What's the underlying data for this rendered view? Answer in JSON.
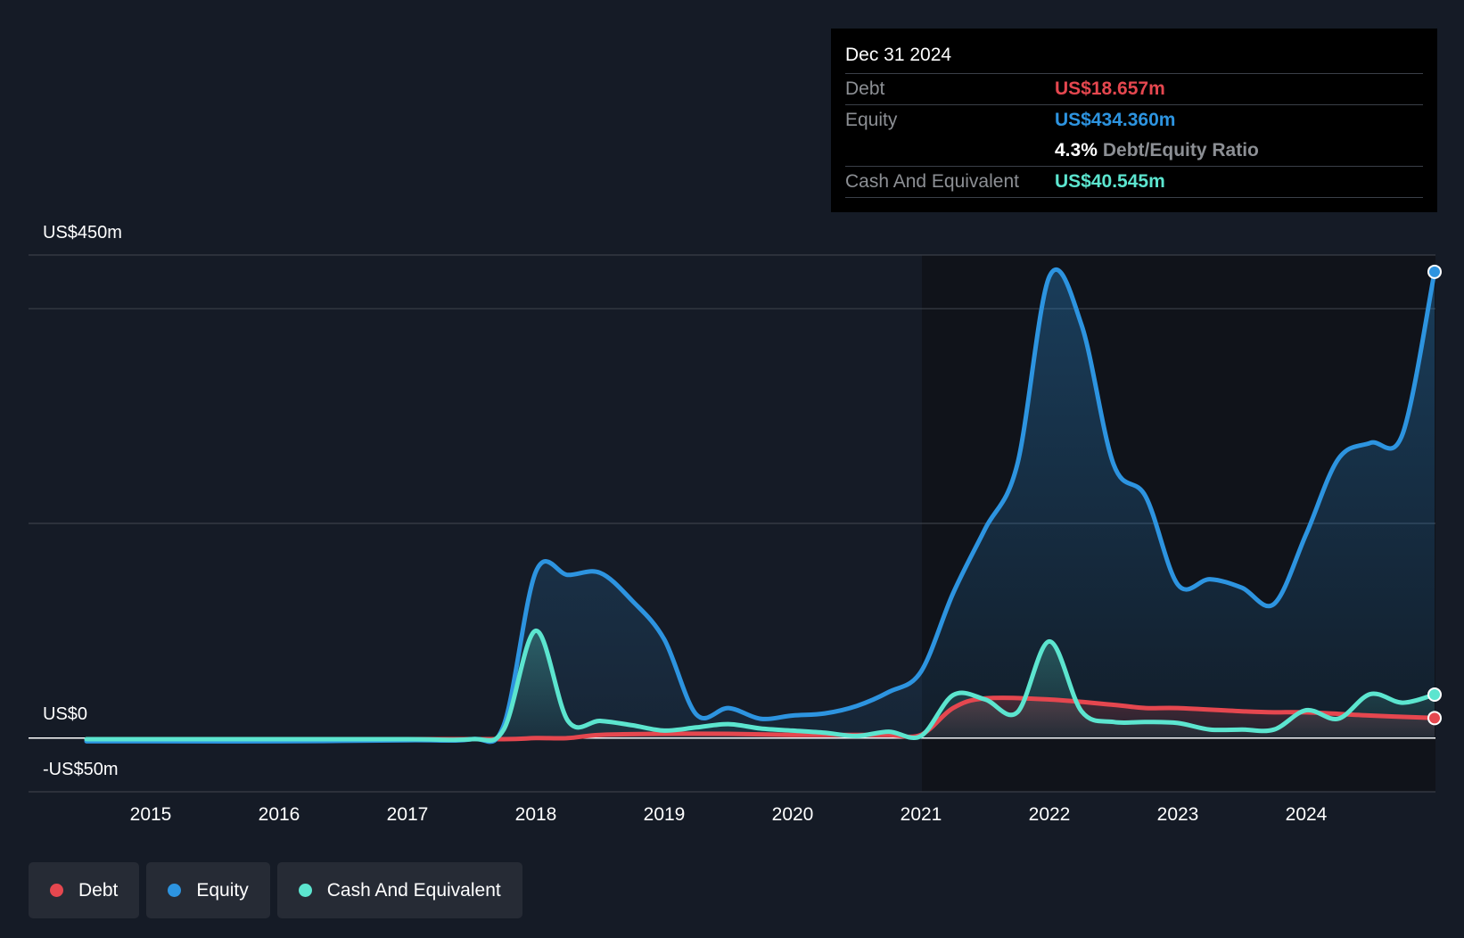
{
  "tooltip": {
    "date": "Dec 31 2024",
    "debt_label": "Debt",
    "debt_value": "US$18.657m",
    "equity_label": "Equity",
    "equity_value": "US$434.360m",
    "ratio_value": "4.3%",
    "ratio_label": "Debt/Equity Ratio",
    "cash_label": "Cash And Equivalent",
    "cash_value": "US$40.545m"
  },
  "y_axis": {
    "top_label": "US$450m",
    "zero_label": "US$0",
    "bottom_label": "-US$50m"
  },
  "legend": [
    {
      "label": "Debt",
      "color": "#e5474f"
    },
    {
      "label": "Equity",
      "color": "#2d94e0"
    },
    {
      "label": "Cash And Equivalent",
      "color": "#5ce5cf"
    }
  ],
  "colors": {
    "background": "#151b26",
    "highlight_background": "#10131a",
    "debt": "#e5474f",
    "equity": "#2d94e0",
    "cash": "#5ce5cf",
    "grid": "#3a3f48"
  },
  "chart_data": {
    "type": "area",
    "x_ticks": [
      "2015",
      "2016",
      "2017",
      "2018",
      "2019",
      "2020",
      "2021",
      "2022",
      "2023",
      "2024"
    ],
    "ylim": [
      -50,
      450
    ],
    "y_gridlines": [
      450,
      400,
      200,
      0,
      -50
    ],
    "legend_position": "bottom-left",
    "series": [
      {
        "name": "Debt",
        "color": "#e5474f",
        "points": [
          [
            2014.5,
            -2
          ],
          [
            2015.0,
            -1
          ],
          [
            2016.0,
            -1
          ],
          [
            2017.0,
            -1
          ],
          [
            2017.75,
            -1
          ],
          [
            2018.0,
            0
          ],
          [
            2018.25,
            0
          ],
          [
            2018.5,
            3
          ],
          [
            2019.0,
            4
          ],
          [
            2019.5,
            4
          ],
          [
            2020.0,
            3
          ],
          [
            2020.5,
            3
          ],
          [
            2020.75,
            3
          ],
          [
            2021.0,
            3
          ],
          [
            2021.25,
            28
          ],
          [
            2021.5,
            37
          ],
          [
            2022.0,
            36
          ],
          [
            2022.5,
            31
          ],
          [
            2022.75,
            28
          ],
          [
            2023.0,
            28
          ],
          [
            2023.5,
            25
          ],
          [
            2023.75,
            24
          ],
          [
            2024.0,
            24
          ],
          [
            2024.5,
            21
          ],
          [
            2025.0,
            18.657
          ]
        ]
      },
      {
        "name": "Equity",
        "color": "#2d94e0",
        "points": [
          [
            2014.5,
            -3
          ],
          [
            2015.0,
            -3
          ],
          [
            2016.0,
            -3
          ],
          [
            2017.0,
            -2
          ],
          [
            2017.5,
            -1
          ],
          [
            2017.75,
            12
          ],
          [
            2018.0,
            155
          ],
          [
            2018.25,
            152
          ],
          [
            2018.5,
            154
          ],
          [
            2018.75,
            128
          ],
          [
            2019.0,
            92
          ],
          [
            2019.25,
            22
          ],
          [
            2019.5,
            28
          ],
          [
            2019.75,
            18
          ],
          [
            2020.0,
            21
          ],
          [
            2020.25,
            23
          ],
          [
            2020.5,
            30
          ],
          [
            2020.75,
            43
          ],
          [
            2021.0,
            62
          ],
          [
            2021.25,
            135
          ],
          [
            2021.5,
            195
          ],
          [
            2021.75,
            255
          ],
          [
            2022.0,
            430
          ],
          [
            2022.25,
            385
          ],
          [
            2022.5,
            255
          ],
          [
            2022.75,
            225
          ],
          [
            2023.0,
            143
          ],
          [
            2023.25,
            148
          ],
          [
            2023.5,
            140
          ],
          [
            2023.75,
            125
          ],
          [
            2024.0,
            190
          ],
          [
            2024.25,
            260
          ],
          [
            2024.5,
            275
          ],
          [
            2024.75,
            283
          ],
          [
            2025.0,
            434.36
          ]
        ]
      },
      {
        "name": "Cash And Equivalent",
        "color": "#5ce5cf",
        "points": [
          [
            2014.5,
            -1
          ],
          [
            2015.0,
            -1
          ],
          [
            2016.0,
            -1
          ],
          [
            2017.0,
            -1
          ],
          [
            2017.5,
            -1
          ],
          [
            2017.75,
            8
          ],
          [
            2018.0,
            100
          ],
          [
            2018.25,
            16
          ],
          [
            2018.5,
            16
          ],
          [
            2018.75,
            12
          ],
          [
            2019.0,
            7
          ],
          [
            2019.25,
            10
          ],
          [
            2019.5,
            13
          ],
          [
            2019.75,
            9
          ],
          [
            2020.0,
            7
          ],
          [
            2020.25,
            5
          ],
          [
            2020.5,
            2
          ],
          [
            2020.75,
            6
          ],
          [
            2021.0,
            2
          ],
          [
            2021.25,
            40
          ],
          [
            2021.5,
            36
          ],
          [
            2021.75,
            24
          ],
          [
            2022.0,
            90
          ],
          [
            2022.25,
            25
          ],
          [
            2022.5,
            15
          ],
          [
            2022.75,
            15
          ],
          [
            2023.0,
            14
          ],
          [
            2023.25,
            8
          ],
          [
            2023.5,
            8
          ],
          [
            2023.75,
            8
          ],
          [
            2024.0,
            26
          ],
          [
            2024.25,
            18
          ],
          [
            2024.5,
            41
          ],
          [
            2024.75,
            33
          ],
          [
            2025.0,
            40.545
          ]
        ]
      }
    ]
  }
}
